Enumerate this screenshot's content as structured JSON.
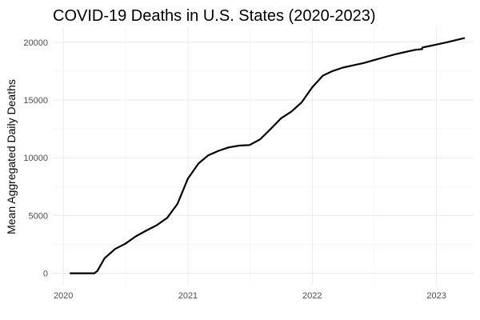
{
  "chart_data": {
    "type": "line",
    "title": "COVID-19 Deaths in U.S. States (2020-2023)",
    "xlabel": "",
    "ylabel": "Mean Aggregated Daily Deaths",
    "x_ticks": [
      "2020",
      "2021",
      "2022",
      "2023"
    ],
    "y_ticks": [
      0,
      5000,
      10000,
      15000,
      20000
    ],
    "xlim": [
      "2019-12-01",
      "2023-04-20"
    ],
    "ylim": [
      -1000,
      21300
    ],
    "grid": true,
    "legend": "none",
    "line_color": "#000000",
    "series": [
      {
        "x": [
          "2020-01-22",
          "2020-03-01",
          "2020-04-01",
          "2020-04-10",
          "2020-05-01",
          "2020-06-01",
          "2020-07-01",
          "2020-08-01",
          "2020-09-01",
          "2020-10-01",
          "2020-11-01",
          "2020-12-01",
          "2021-01-01",
          "2021-02-01",
          "2021-03-01",
          "2021-04-01",
          "2021-05-01",
          "2021-06-01",
          "2021-07-01",
          "2021-08-01",
          "2021-09-01",
          "2021-10-01",
          "2021-11-01",
          "2021-12-01",
          "2022-01-01",
          "2022-02-01",
          "2022-03-01",
          "2022-04-01",
          "2022-05-01",
          "2022-06-01",
          "2022-07-01",
          "2022-08-01",
          "2022-09-01",
          "2022-10-01",
          "2022-11-01",
          "2022-11-20",
          "2022-11-21",
          "2022-12-01",
          "2023-01-01",
          "2023-02-01",
          "2023-03-01",
          "2023-03-23"
        ],
        "y": [
          0,
          0,
          0,
          200,
          1300,
          2100,
          2550,
          3200,
          3700,
          4150,
          4800,
          6000,
          8200,
          9500,
          10200,
          10600,
          10900,
          11050,
          11100,
          11600,
          12500,
          13400,
          14000,
          14800,
          16100,
          17100,
          17500,
          17800,
          18000,
          18200,
          18450,
          18700,
          18950,
          19150,
          19350,
          19400,
          19550,
          19600,
          19800,
          20000,
          20200,
          20350
        ]
      }
    ]
  }
}
